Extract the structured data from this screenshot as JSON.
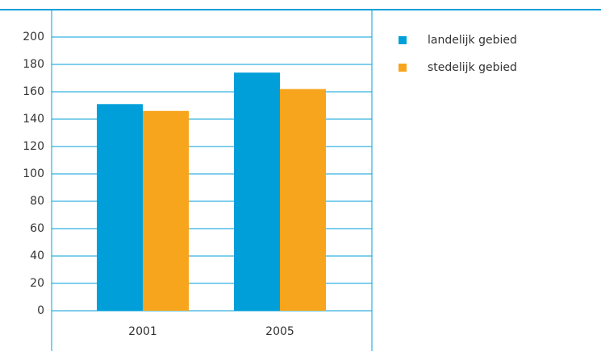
{
  "chart_data": {
    "type": "bar",
    "categories": [
      "2001",
      "2005"
    ],
    "series": [
      {
        "name": "landelijk gebied",
        "color": "#009fda",
        "values": [
          151,
          174
        ]
      },
      {
        "name": "stedelijk gebied",
        "color": "#f7a51c",
        "values": [
          146,
          162
        ]
      }
    ],
    "ylim": [
      0,
      200
    ],
    "yticks": [
      0,
      20,
      40,
      60,
      80,
      100,
      120,
      140,
      160,
      180,
      200
    ],
    "grid": true,
    "legend": "right"
  }
}
